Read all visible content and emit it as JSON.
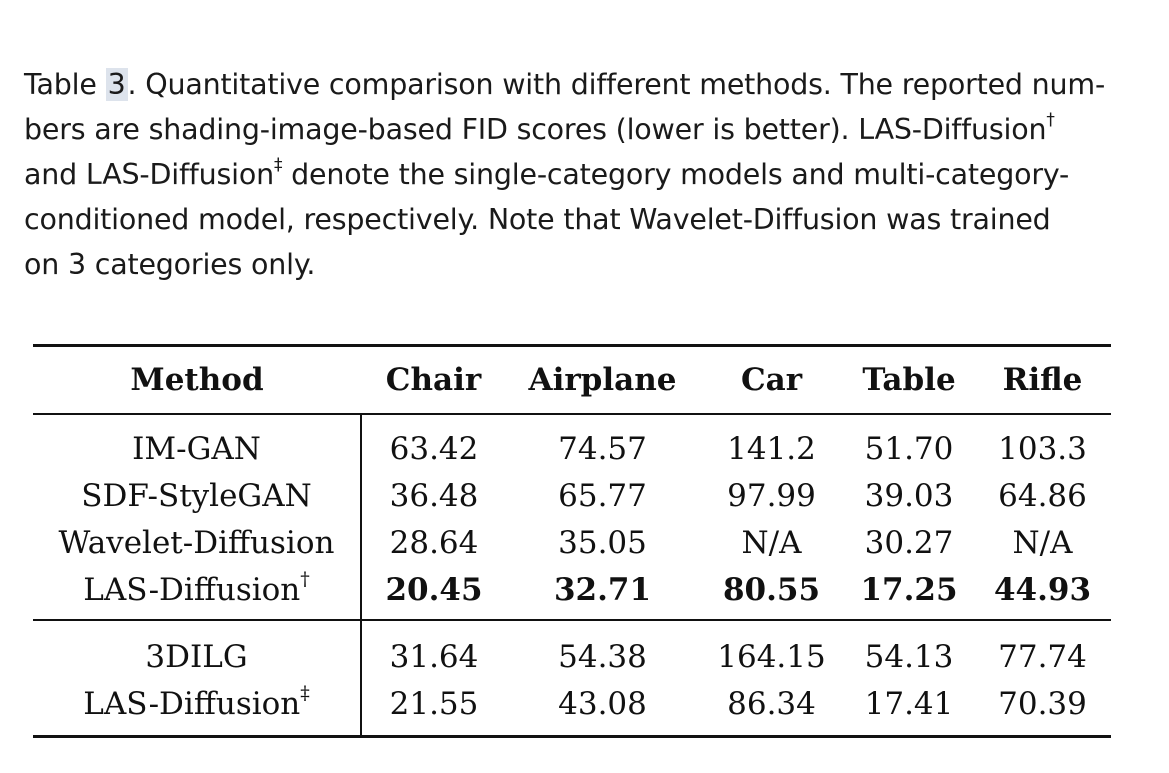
{
  "caption": {
    "label": "Table ",
    "number": "3",
    "line1_rest": ".  Quantitative comparison with different methods. The reported num-",
    "line2": "bers are shading-image-based FID scores (lower is better). LAS-Diffusion",
    "line2_mark": "†",
    "line3_a": "and LAS-Diffusion",
    "line3_mark": "‡",
    "line3_b": " denote the single-category models and multi-category-",
    "line4": "conditioned model, respectively. Note that Wavelet-Diffusion was trained",
    "line5": "on 3 categories only."
  },
  "table": {
    "headers": [
      "Method",
      "Chair",
      "Airplane",
      "Car",
      "Table",
      "Rifle"
    ],
    "group1": [
      {
        "method": "IM-GAN",
        "mark": "",
        "values": [
          "63.42",
          "74.57",
          "141.2",
          "51.70",
          "103.3"
        ]
      },
      {
        "method": "SDF-StyleGAN",
        "mark": "",
        "values": [
          "36.48",
          "65.77",
          "97.99",
          "39.03",
          "64.86"
        ]
      },
      {
        "method": "Wavelet-Diffusion",
        "mark": "",
        "values": [
          "28.64",
          "35.05",
          "N/A",
          "30.27",
          "N/A"
        ]
      },
      {
        "method": "LAS-Diffusion",
        "mark": "†",
        "values": [
          "20.45",
          "32.71",
          "80.55",
          "17.25",
          "44.93"
        ]
      }
    ],
    "group2": [
      {
        "method": "3DILG",
        "mark": "",
        "values": [
          "31.64",
          "54.38",
          "164.15",
          "54.13",
          "77.74"
        ]
      },
      {
        "method": "LAS-Diffusion",
        "mark": "‡",
        "values": [
          "21.55",
          "43.08",
          "86.34",
          "17.41",
          "70.39"
        ]
      }
    ]
  }
}
